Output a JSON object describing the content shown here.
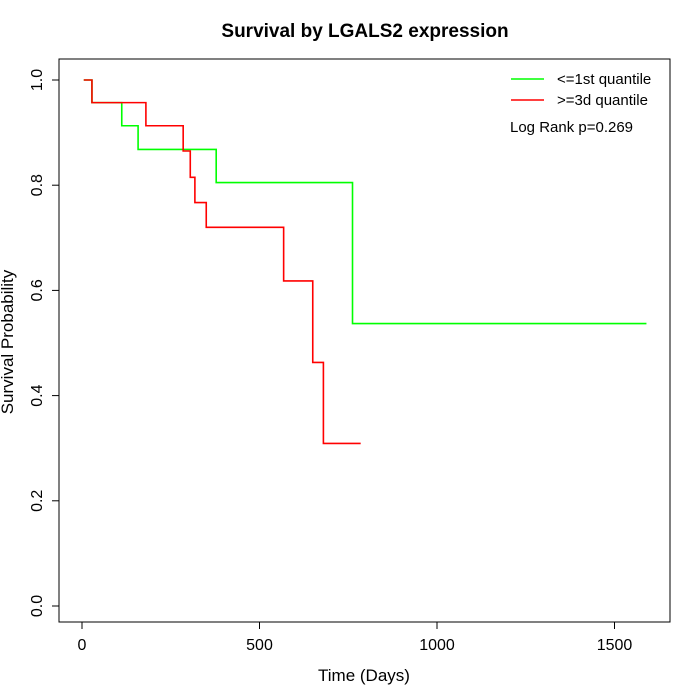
{
  "chart_data": {
    "type": "line",
    "step": true,
    "title": "Survival by LGALS2 expression",
    "xlabel": "Time (Days)",
    "ylabel": "Survival Probability",
    "xlim": [
      0,
      1600
    ],
    "ylim": [
      0,
      1.0
    ],
    "xticks": [
      0,
      500,
      1000,
      1500
    ],
    "yticks": [
      0.0,
      0.2,
      0.4,
      0.6,
      0.8,
      1.0
    ],
    "xtick_labels": [
      "0",
      "500",
      "1000",
      "1500"
    ],
    "ytick_labels": [
      "0.0",
      "0.2",
      "0.4",
      "0.6",
      "0.8",
      "1.0"
    ],
    "grid": false,
    "legend_position": "top-right",
    "annotation": "Log Rank p=0.269",
    "series": [
      {
        "name": "<=1st quantile",
        "color": "#00ff00",
        "x": [
          5,
          28,
          112,
          158,
          378,
          762,
          1590
        ],
        "y": [
          1.0,
          0.957,
          0.913,
          0.868,
          0.805,
          0.537,
          0.537
        ]
      },
      {
        "name": ">=3d quantile",
        "color": "#ff0000",
        "x": [
          5,
          28,
          180,
          285,
          305,
          318,
          350,
          568,
          650,
          680,
          785
        ],
        "y": [
          1.0,
          0.957,
          0.913,
          0.865,
          0.815,
          0.767,
          0.72,
          0.618,
          0.463,
          0.309,
          0.309
        ]
      }
    ]
  }
}
